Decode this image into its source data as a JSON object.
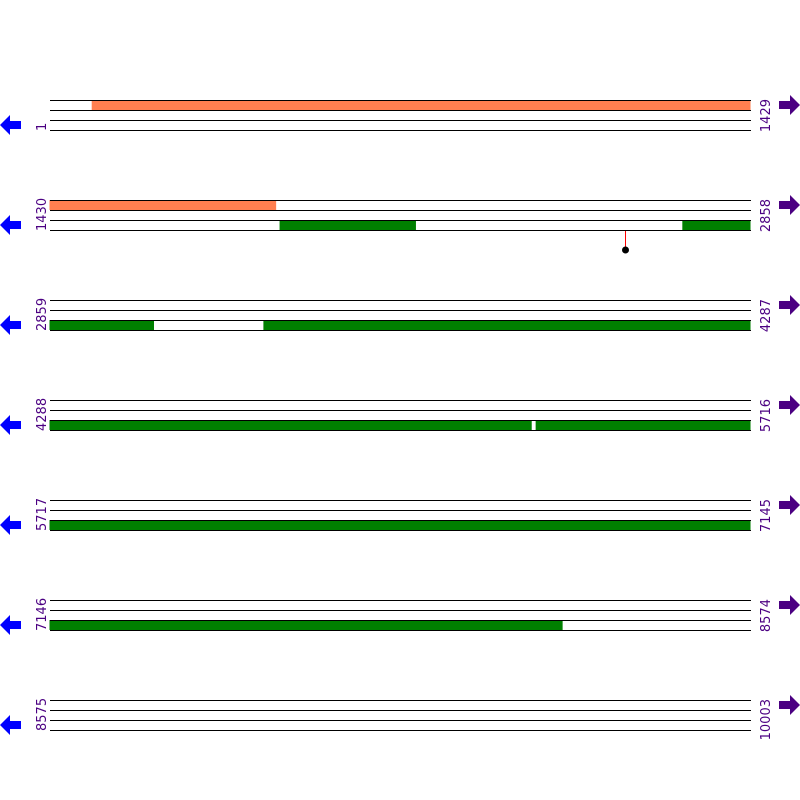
{
  "colors": {
    "line": "#000000",
    "orange": "#ff7f50",
    "green": "#008000",
    "left_arrow": "#0000ff",
    "right_arrow": "#4b0082",
    "marker_stem": "#ff0000",
    "marker_dot": "#000000"
  },
  "bp_per_row": 1429,
  "rows": [
    {
      "start": "1",
      "end": "1429",
      "features": [
        {
          "track": "top",
          "color": "orange",
          "from": 87,
          "to": 1429
        }
      ],
      "markers": []
    },
    {
      "start": "1430",
      "end": "2858",
      "features": [
        {
          "track": "top",
          "color": "orange",
          "from": 1430,
          "to": 1891
        },
        {
          "track": "bottom",
          "color": "green",
          "from": 1899,
          "to": 2176
        },
        {
          "track": "bottom",
          "color": "green",
          "from": 2720,
          "to": 2858
        }
      ],
      "markers": [
        {
          "pos": 2602
        }
      ]
    },
    {
      "start": "2859",
      "end": "4287",
      "features": [
        {
          "track": "bottom",
          "color": "green",
          "from": 2859,
          "to": 3071
        },
        {
          "track": "bottom",
          "color": "green",
          "from": 3295,
          "to": 4287
        }
      ],
      "markers": []
    },
    {
      "start": "4288",
      "end": "5716",
      "features": [
        {
          "track": "bottom",
          "color": "green",
          "from": 4288,
          "to": 5270
        },
        {
          "track": "bottom",
          "color": "green",
          "from": 5279,
          "to": 5716
        }
      ],
      "markers": []
    },
    {
      "start": "5717",
      "end": "7145",
      "features": [
        {
          "track": "bottom",
          "color": "green",
          "from": 5717,
          "to": 7145
        }
      ],
      "markers": []
    },
    {
      "start": "7146",
      "end": "8574",
      "features": [
        {
          "track": "bottom",
          "color": "green",
          "from": 7146,
          "to": 8191
        }
      ],
      "markers": []
    },
    {
      "start": "8575",
      "end": "10003",
      "features": [],
      "markers": []
    }
  ]
}
